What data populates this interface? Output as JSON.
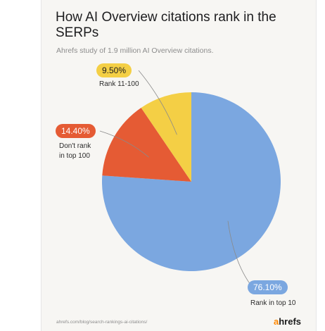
{
  "header": {
    "title": "How AI Overview citations rank in the SERPs",
    "subtitle": "Ahrefs study of 1.9 million AI Overview citations."
  },
  "chart_data": {
    "type": "pie",
    "title": "How AI Overview citations rank in the SERPs",
    "subtitle": "Ahrefs study of 1.9 million AI Overview citations.",
    "slices": [
      {
        "label": "Rank in top 10",
        "value": 76.1,
        "display": "76.10%",
        "color": "#7ba7e0"
      },
      {
        "label": "Don't rank in top 100",
        "value": 14.4,
        "display": "14.40%",
        "color": "#e55b34"
      },
      {
        "label": "Rank 11-100",
        "value": 9.5,
        "display": "9.50%",
        "color": "#f4cf45"
      }
    ],
    "label_lines": {
      "dont_rank": [
        "Don't rank",
        "in top 100"
      ]
    }
  },
  "footer": {
    "source": "ahrefs.com/blog/search-rankings-ai-citations/",
    "brand_a": "a",
    "brand_rest": "hrefs"
  }
}
